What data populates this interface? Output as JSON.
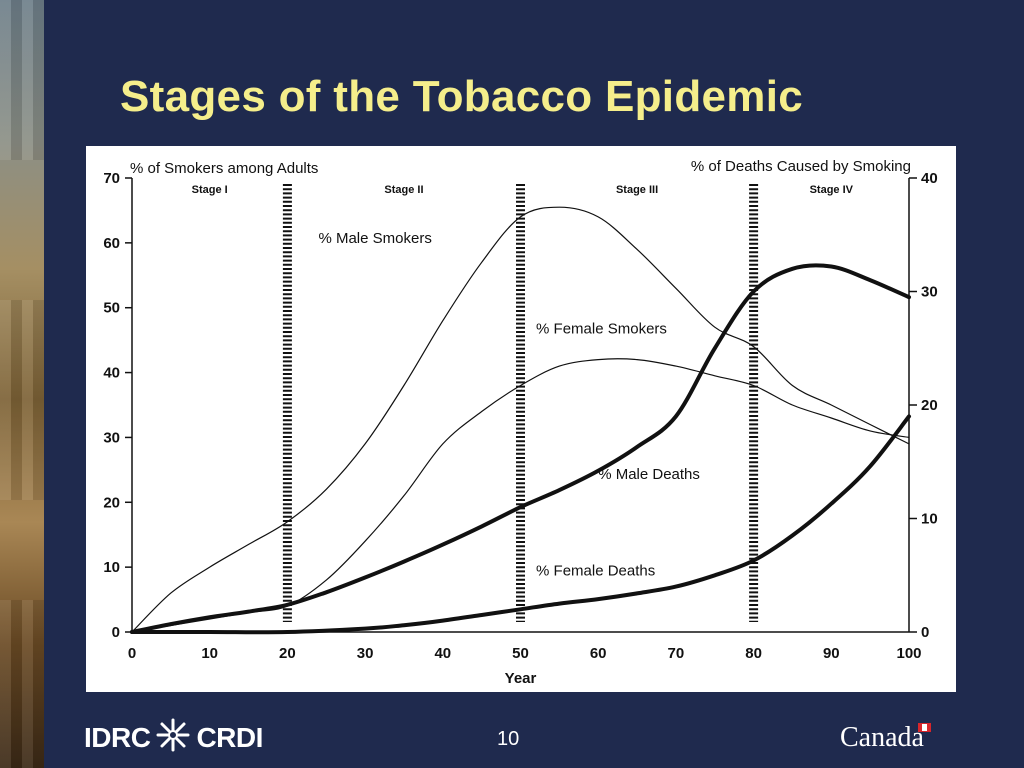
{
  "slide": {
    "title": "Stages of the Tobacco Epidemic",
    "page_number": "10",
    "logo_left": {
      "left_text": "IDRC",
      "right_text": "CRDI",
      "icon": "snowflake-star-icon"
    },
    "logo_right": {
      "text": "Canada",
      "icon": "canada-flag-icon"
    },
    "colors": {
      "background": "#1f2a4e",
      "title": "#f5ee8b",
      "chart_bg": "#ffffff",
      "ink": "#111111"
    }
  },
  "chart_data": {
    "type": "line",
    "title": "",
    "xlabel": "Year",
    "ylabel_left": "% of Smokers among Adults",
    "ylabel_right": "% of Deaths Caused by Smoking",
    "xlim": [
      0,
      100
    ],
    "ylim_left": [
      0,
      70
    ],
    "ylim_right": [
      0,
      40
    ],
    "x_ticks": [
      0,
      10,
      20,
      30,
      40,
      50,
      60,
      70,
      80,
      90,
      100
    ],
    "y_ticks_left": [
      0,
      10,
      20,
      30,
      40,
      50,
      60,
      70
    ],
    "y_ticks_right": [
      0,
      10,
      20,
      30,
      40
    ],
    "grid": false,
    "stage_dividers": [
      20,
      50,
      80
    ],
    "stages": [
      {
        "label": "Stage I",
        "x": 10
      },
      {
        "label": "Stage II",
        "x": 35
      },
      {
        "label": "Stage III",
        "x": 65
      },
      {
        "label": "Stage IV",
        "x": 90
      }
    ],
    "series": [
      {
        "name": "% Male Smokers",
        "axis": "left",
        "weight": "thin",
        "label_at": [
          24,
          60
        ],
        "points": [
          [
            0,
            0
          ],
          [
            5,
            6
          ],
          [
            10,
            10
          ],
          [
            15,
            13.5
          ],
          [
            20,
            17
          ],
          [
            25,
            22
          ],
          [
            30,
            29
          ],
          [
            35,
            38
          ],
          [
            40,
            48
          ],
          [
            45,
            57
          ],
          [
            50,
            64
          ],
          [
            55,
            65.5
          ],
          [
            60,
            64
          ],
          [
            65,
            59
          ],
          [
            70,
            53
          ],
          [
            75,
            47
          ],
          [
            80,
            44
          ],
          [
            85,
            38
          ],
          [
            90,
            35
          ],
          [
            95,
            32
          ],
          [
            100,
            29
          ]
        ]
      },
      {
        "name": "% Female Smokers",
        "axis": "left",
        "weight": "thin",
        "label_at": [
          52,
          46
        ],
        "points": [
          [
            0,
            0
          ],
          [
            10,
            2
          ],
          [
            15,
            3
          ],
          [
            20,
            4
          ],
          [
            25,
            8
          ],
          [
            30,
            14
          ],
          [
            35,
            21
          ],
          [
            40,
            29
          ],
          [
            45,
            34
          ],
          [
            50,
            38
          ],
          [
            55,
            41
          ],
          [
            60,
            42
          ],
          [
            65,
            42
          ],
          [
            70,
            41
          ],
          [
            75,
            39.5
          ],
          [
            80,
            38
          ],
          [
            85,
            35
          ],
          [
            90,
            33
          ],
          [
            95,
            31
          ],
          [
            100,
            30
          ]
        ]
      },
      {
        "name": "% Male Deaths",
        "axis": "right",
        "weight": "thick",
        "label_at": [
          60,
          13.5
        ],
        "points": [
          [
            0,
            0
          ],
          [
            5,
            0.7
          ],
          [
            10,
            1.3
          ],
          [
            15,
            1.8
          ],
          [
            20,
            2.4
          ],
          [
            25,
            3.5
          ],
          [
            30,
            4.8
          ],
          [
            35,
            6.2
          ],
          [
            40,
            7.7
          ],
          [
            45,
            9.3
          ],
          [
            50,
            11
          ],
          [
            55,
            12.5
          ],
          [
            60,
            14.2
          ],
          [
            65,
            16.3
          ],
          [
            70,
            19
          ],
          [
            75,
            25
          ],
          [
            80,
            30
          ],
          [
            85,
            32
          ],
          [
            90,
            32.2
          ],
          [
            95,
            31
          ],
          [
            100,
            29.5
          ]
        ]
      },
      {
        "name": "% Female Deaths",
        "axis": "right",
        "weight": "thick",
        "label_at": [
          52,
          5
        ],
        "points": [
          [
            0,
            0
          ],
          [
            10,
            0
          ],
          [
            20,
            0
          ],
          [
            30,
            0.3
          ],
          [
            35,
            0.6
          ],
          [
            40,
            1.0
          ],
          [
            45,
            1.5
          ],
          [
            50,
            2.0
          ],
          [
            55,
            2.5
          ],
          [
            60,
            2.9
          ],
          [
            65,
            3.4
          ],
          [
            70,
            4.0
          ],
          [
            75,
            5.0
          ],
          [
            80,
            6.3
          ],
          [
            85,
            8.5
          ],
          [
            90,
            11.3
          ],
          [
            95,
            14.6
          ],
          [
            100,
            19
          ]
        ]
      }
    ]
  }
}
